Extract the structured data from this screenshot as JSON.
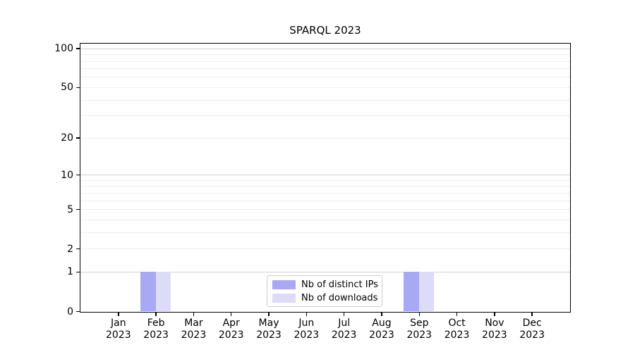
{
  "chart_data": {
    "type": "bar",
    "title": "SPARQL 2023",
    "categories": [
      "Jan",
      "Feb",
      "Mar",
      "Apr",
      "May",
      "Jun",
      "Jul",
      "Aug",
      "Sep",
      "Oct",
      "Nov",
      "Dec"
    ],
    "x_year_label": "2023",
    "series": [
      {
        "name": "Nb of distinct IPs",
        "color": "#a9a9f3",
        "values": [
          0,
          1,
          0,
          0,
          0,
          0,
          0,
          0,
          1,
          0,
          0,
          0
        ]
      },
      {
        "name": "Nb of downloads",
        "color": "#dcdcf9",
        "values": [
          0,
          1,
          0,
          0,
          0,
          0,
          0,
          0,
          1,
          0,
          0,
          0
        ]
      }
    ],
    "y_axis": {
      "scale": "log1p",
      "tick_values": [
        0,
        1,
        2,
        5,
        10,
        20,
        50,
        100
      ],
      "range": [
        0,
        113
      ]
    },
    "legend_position": "lower center",
    "grid": "horizontal"
  },
  "colors": {
    "background": "#ffffff",
    "spine": "#000000",
    "grid_major": "#d2d2d2",
    "grid_minor": "#eeeeee"
  }
}
